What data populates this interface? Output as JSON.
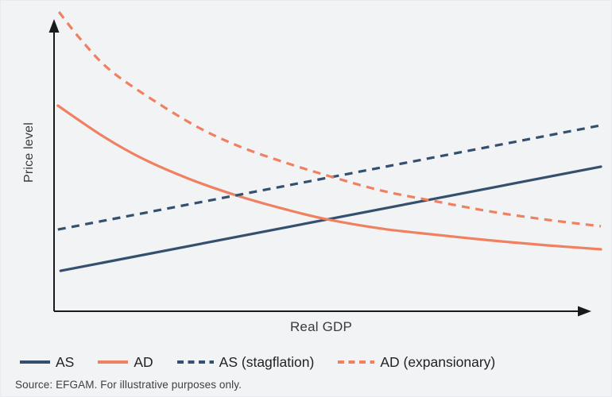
{
  "axes": {
    "y_label": "Price level",
    "x_label": "Real GDP"
  },
  "legend": [
    {
      "id": "as",
      "label": "AS",
      "color": "#35506f",
      "style": "solid"
    },
    {
      "id": "ad",
      "label": "AD",
      "color": "#ef8161",
      "style": "solid"
    },
    {
      "id": "as-stag",
      "label": "AS (stagflation)",
      "color": "#35506f",
      "style": "dashed"
    },
    {
      "id": "ad-exp",
      "label": "AD (expansionary)",
      "color": "#ef8161",
      "style": "dashed"
    }
  ],
  "source": "Source: EFGAM. For illustrative purposes only.",
  "colors": {
    "as_line": "#35506f",
    "ad_line": "#ef8161",
    "axis": "#1a1a1a",
    "background": "#f2f3f5"
  },
  "chart_data": {
    "type": "line",
    "title": "",
    "xlabel": "Real GDP",
    "ylabel": "Price level",
    "xlim": [
      0,
      100
    ],
    "ylim": [
      0,
      100
    ],
    "grid": false,
    "axis_tick_labels": "none (illustrative diagram, unlabeled axes)",
    "legend_position": "bottom",
    "series": [
      {
        "name": "AS",
        "style": "solid",
        "color": "#35506f",
        "points": [
          [
            1.2,
            13.5
          ],
          [
            100,
            48.3
          ]
        ]
      },
      {
        "name": "AD",
        "style": "solid",
        "color": "#ef8161",
        "points": [
          [
            0.7,
            68.7
          ],
          [
            9.0,
            58.4
          ],
          [
            16.3,
            50.9
          ],
          [
            25.0,
            44.0
          ],
          [
            33.7,
            38.5
          ],
          [
            42.4,
            34.0
          ],
          [
            49.7,
            30.8
          ],
          [
            59.9,
            27.6
          ],
          [
            70.1,
            25.5
          ],
          [
            80.2,
            23.6
          ],
          [
            90.4,
            22.0
          ],
          [
            100,
            20.7
          ]
        ]
      },
      {
        "name": "AS (stagflation)",
        "style": "dashed",
        "color": "#35506f",
        "points": [
          [
            0.7,
            27.3
          ],
          [
            100,
            62.1
          ]
        ]
      },
      {
        "name": "AD (expansionary)",
        "style": "dashed",
        "color": "#ef8161",
        "points": [
          [
            0.9,
            100
          ],
          [
            4.7,
            91.2
          ],
          [
            9.7,
            81.4
          ],
          [
            16.3,
            72.7
          ],
          [
            25.7,
            62.1
          ],
          [
            33.7,
            55.2
          ],
          [
            42.4,
            49.6
          ],
          [
            50.4,
            45.1
          ],
          [
            59.9,
            40.3
          ],
          [
            70.1,
            36.6
          ],
          [
            80.2,
            33.2
          ],
          [
            90.4,
            30.5
          ],
          [
            100,
            28.4
          ]
        ]
      }
    ]
  }
}
